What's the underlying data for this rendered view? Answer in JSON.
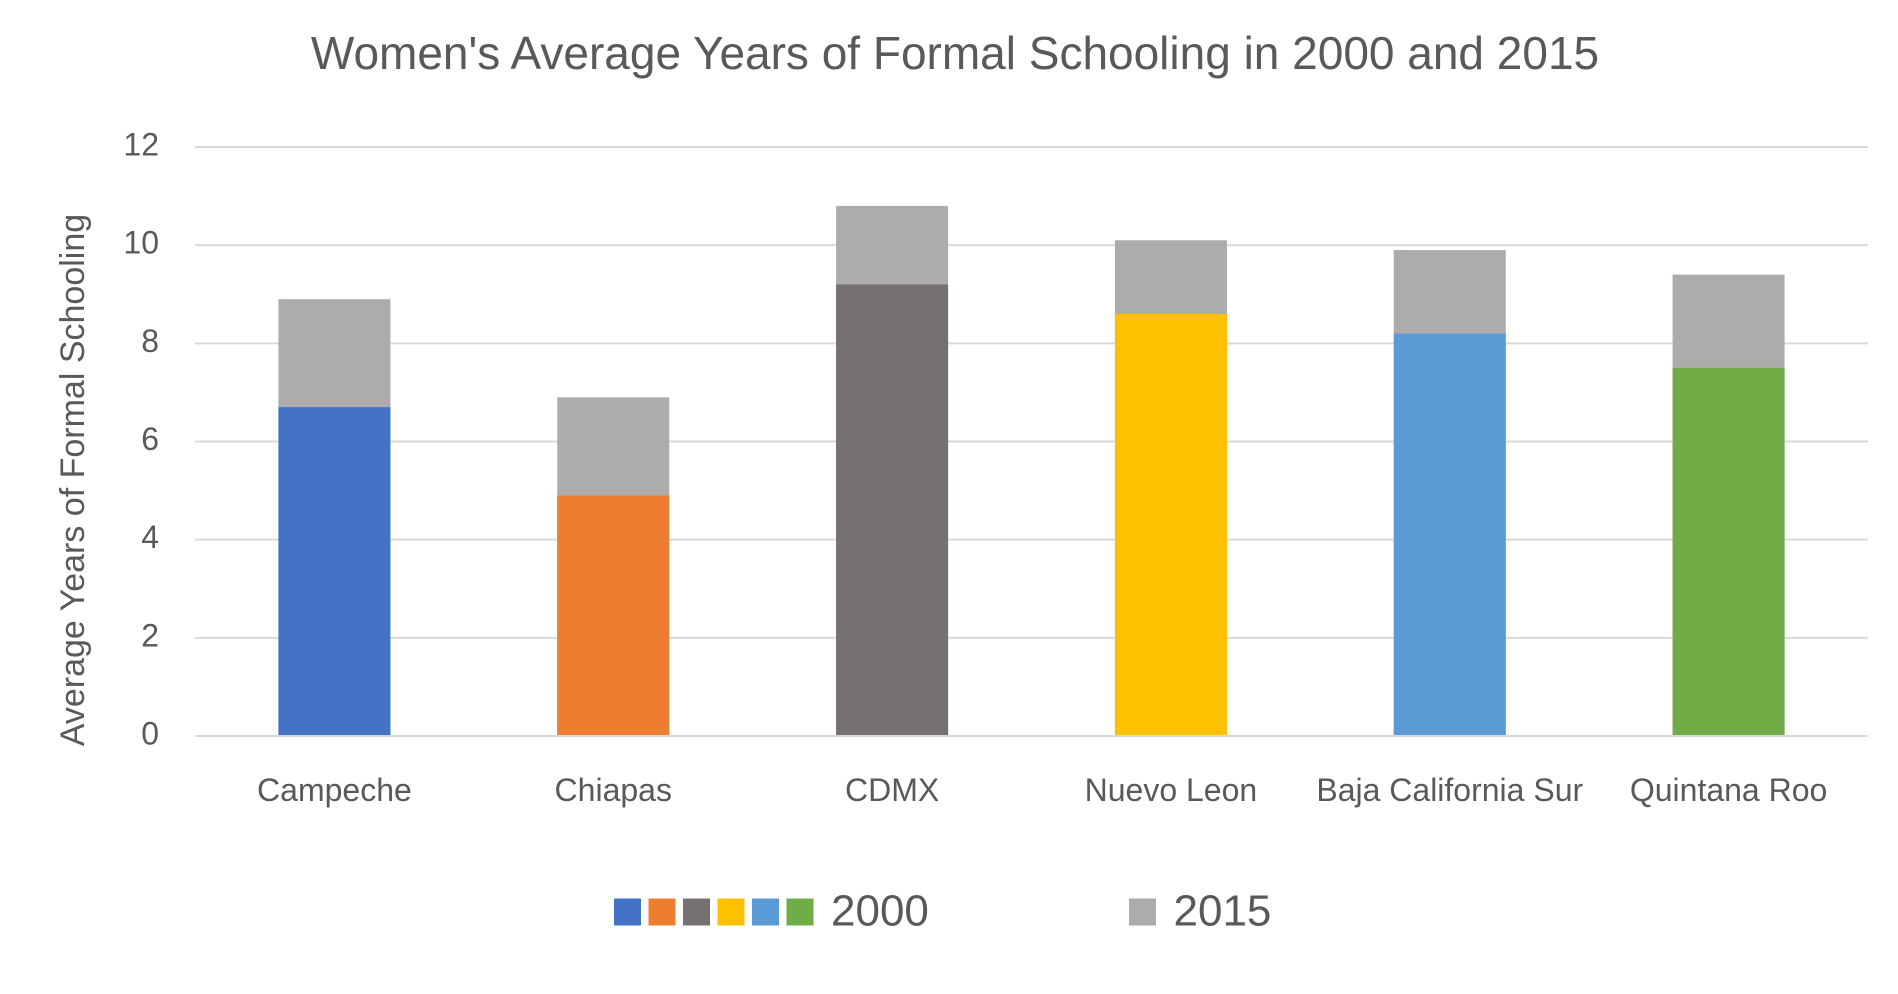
{
  "chart_data": {
    "type": "bar",
    "title": "Women's Average Years of Formal Schooling in 2000 and 2015",
    "y_label": "Average Years of Formal Schooling",
    "categories": [
      "Campeche",
      "Chiapas",
      "CDMX",
      "Nuevo Leon",
      "Baja California Sur",
      "Quintana Roo"
    ],
    "series": [
      {
        "name": "2015",
        "color": "#aeabab",
        "values": [
          8.9,
          6.9,
          10.8,
          10.1,
          9.9,
          9.4
        ]
      },
      {
        "name": "2000",
        "colors": [
          "#4472c4",
          "#ed7d31",
          "#767171",
          "#ffc000",
          "#5b9bd5",
          "#70ad47"
        ],
        "values": [
          6.7,
          4.9,
          9.2,
          8.6,
          8.2,
          7.5
        ]
      }
    ],
    "ylim": [
      0,
      12
    ],
    "yticks": [
      0,
      2,
      4,
      6,
      8,
      10,
      12
    ],
    "grid": true,
    "legend": "bottom"
  }
}
